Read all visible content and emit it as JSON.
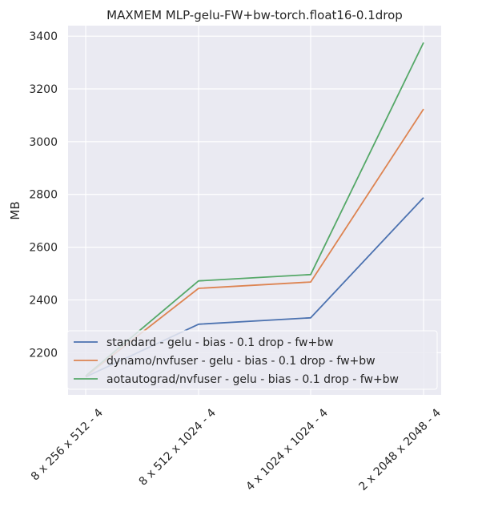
{
  "chart_data": {
    "type": "line",
    "title": "MAXMEM MLP-gelu-FW+bw-torch.float16-0.1drop",
    "xlabel": "",
    "ylabel": "MB",
    "categories": [
      "8 x 256 x 512 - 4",
      "8 x 512 x 1024 - 4",
      "4 x 1024 x 1024 - 4",
      "2 x 2048 x 2048 - 4"
    ],
    "yticks": [
      2200,
      2400,
      2600,
      2800,
      3000,
      3200,
      3400
    ],
    "ylim": [
      2040,
      3440
    ],
    "grid": true,
    "legend_position": "lower-right",
    "series": [
      {
        "name": "standard - gelu -  bias - 0.1 drop - fw+bw",
        "color": "#4c72b0",
        "values": [
          2108,
          2308,
          2332,
          2788
        ]
      },
      {
        "name": "dynamo/nvfuser - gelu -  bias - 0.1 drop - fw+bw",
        "color": "#dd8452",
        "values": [
          2110,
          2444,
          2468,
          3124
        ]
      },
      {
        "name": "aotautograd/nvfuser - gelu -  bias - 0.1 drop - fw+bw",
        "color": "#55a868",
        "values": [
          2112,
          2472,
          2496,
          3376
        ]
      }
    ]
  }
}
